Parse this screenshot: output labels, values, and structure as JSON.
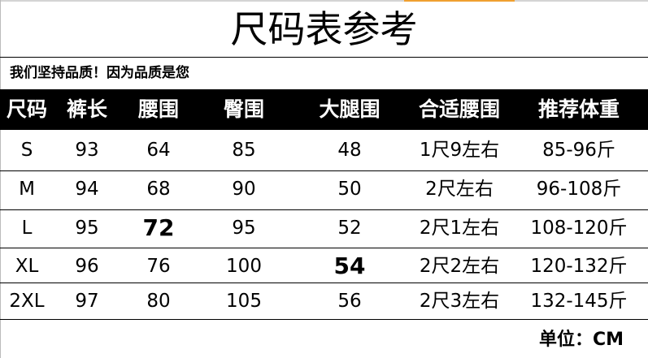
{
  "title": "尺码表参考",
  "subtitle": "我们坚持品质！因为品质是您",
  "columns": [
    "尺码",
    "裤长",
    "腰围",
    "臀围",
    "大腿围",
    "合适腰围",
    "推荐体重"
  ],
  "rows": [
    [
      "S",
      "93",
      "64",
      "85",
      "48",
      "1尺9左右",
      "85-96斤"
    ],
    [
      "M",
      "94",
      "68",
      "90",
      "50",
      "2尺左右",
      "96-108斤"
    ],
    [
      "L",
      "95",
      "72",
      "95",
      "52",
      "2尺1左右",
      "108-120斤"
    ],
    [
      "XL",
      "96",
      "76",
      "100",
      "54",
      "2尺2左右",
      "120-132斤"
    ],
    [
      "2XL",
      "97",
      "80",
      "105",
      "56",
      "2尺3左右",
      "132-145斤"
    ]
  ],
  "unit": "单位：CM",
  "colors": {
    "header_bg": "#000000",
    "accent": "#f0a030"
  }
}
